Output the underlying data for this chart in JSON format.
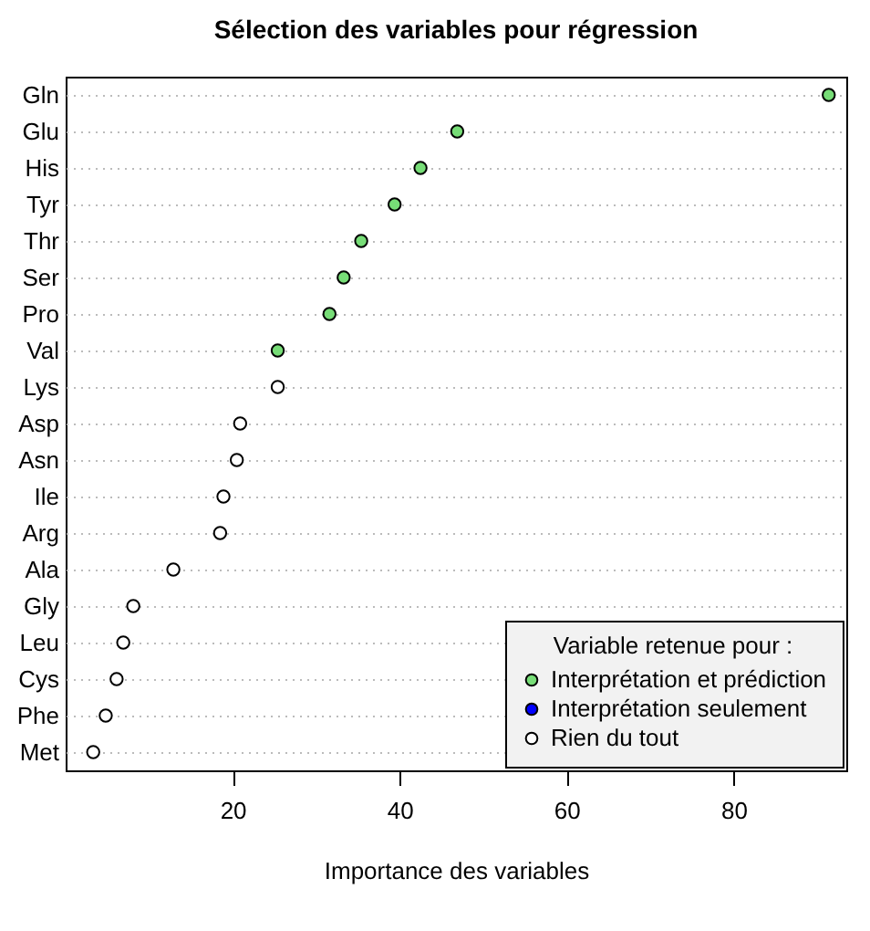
{
  "chart_data": {
    "type": "scatter",
    "title": "Sélection des variables pour régression",
    "xlabel": "Importance des variables",
    "legend_title": "Variable retenue pour :",
    "categories": [
      "Gln",
      "Glu",
      "His",
      "Tyr",
      "Thr",
      "Ser",
      "Pro",
      "Val",
      "Lys",
      "Asp",
      "Asn",
      "Ile",
      "Arg",
      "Ala",
      "Gly",
      "Leu",
      "Cys",
      "Phe",
      "Met"
    ],
    "series": [
      {
        "name": "Interprétation et prédiction",
        "color": "#77dd77",
        "values": [
          91.4,
          46.9,
          42.5,
          39.4,
          35.4,
          33.3,
          31.6,
          25.4,
          null,
          null,
          null,
          null,
          null,
          null,
          null,
          null,
          null,
          null,
          null
        ]
      },
      {
        "name": "Interprétation seulement",
        "color": "#0000ff",
        "values": [
          null,
          null,
          null,
          null,
          null,
          null,
          null,
          null,
          null,
          null,
          null,
          null,
          null,
          null,
          null,
          null,
          null,
          null,
          null
        ]
      },
      {
        "name": "Rien du tout",
        "color": "#ffffff",
        "values": [
          null,
          null,
          null,
          null,
          null,
          null,
          null,
          null,
          25.4,
          20.9,
          20.5,
          18.9,
          18.5,
          12.9,
          8.1,
          6.9,
          6.1,
          4.8,
          3.3
        ]
      }
    ],
    "orientation": "horizontal",
    "xlim": [
      0,
      93.5
    ],
    "xticks": [
      20,
      40,
      60,
      80
    ],
    "grid": "y",
    "legend": "bottom right",
    "marker": "circle"
  }
}
